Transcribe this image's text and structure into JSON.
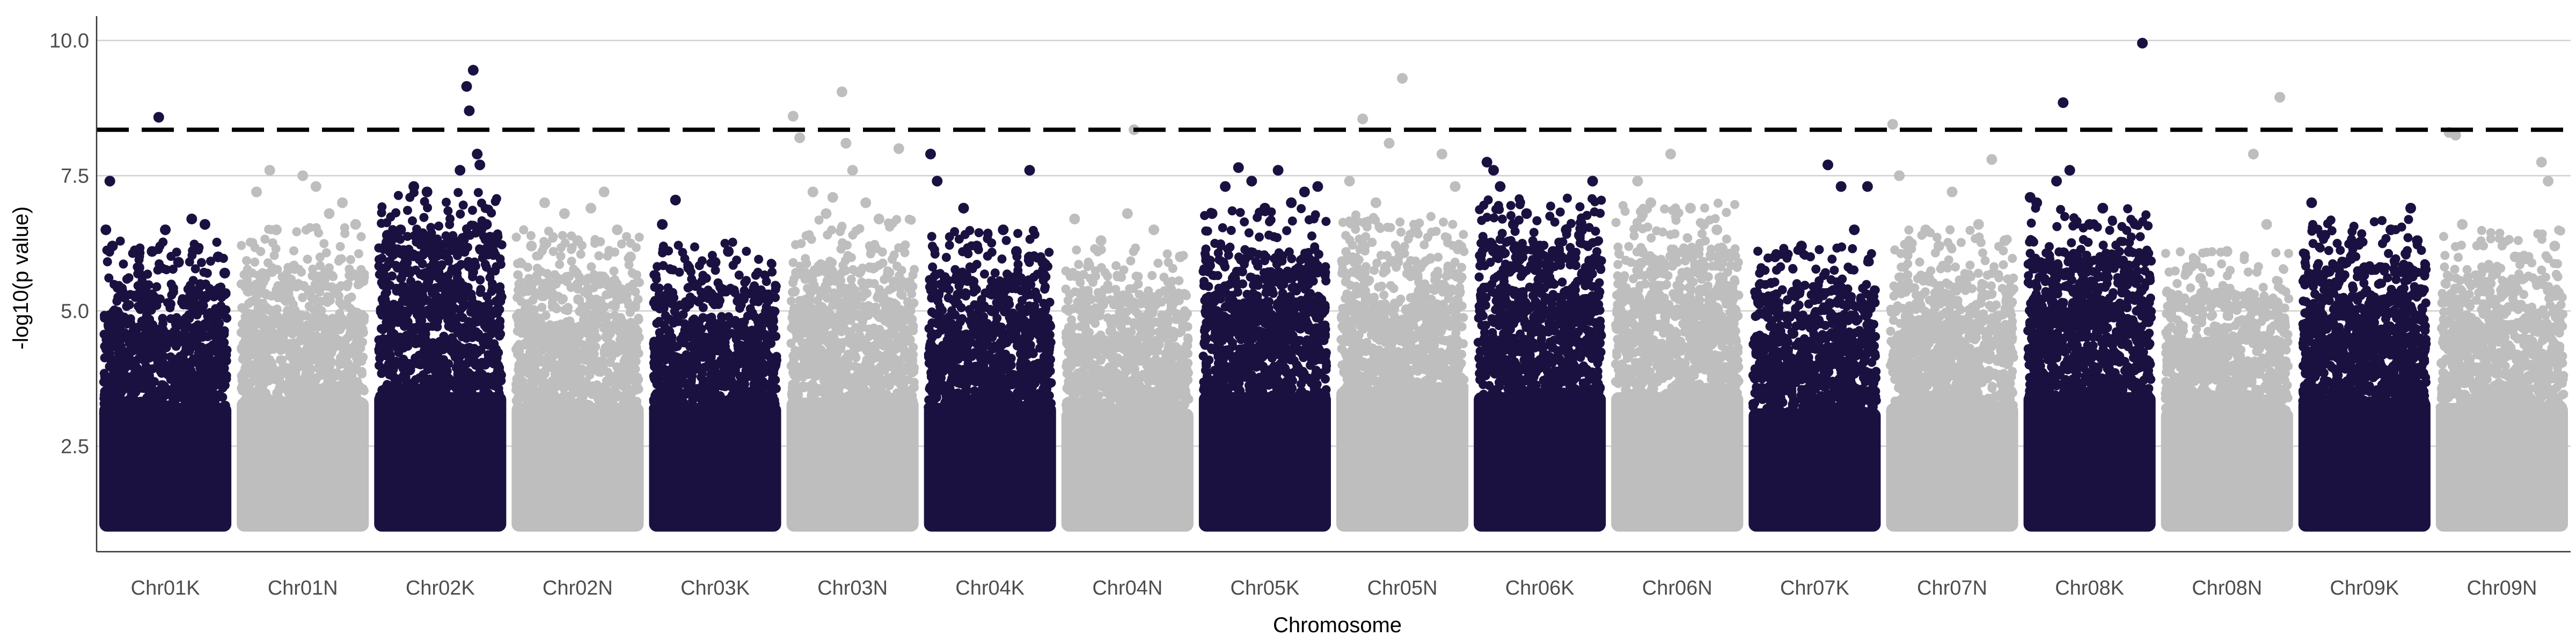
{
  "chart_data": {
    "type": "scatter",
    "subtype": "manhattan",
    "title": "",
    "xlabel": "Chromosome",
    "ylabel": "-log10(p value)",
    "ylim": [
      0.55,
      10.45
    ],
    "yticks": [
      2.5,
      5.0,
      7.5,
      10.0
    ],
    "grid": "horizontal major gridlines only",
    "legend": "none",
    "threshold": {
      "value": 8.35,
      "style": "dashed",
      "color": "#000000"
    },
    "colors": {
      "odd_chromosome": "#1b1141",
      "even_chromosome": "#bebebe"
    },
    "base_min_y": 1.0,
    "categories": [
      "Chr01K",
      "Chr01N",
      "Chr02K",
      "Chr02N",
      "Chr03K",
      "Chr03N",
      "Chr04K",
      "Chr04N",
      "Chr05K",
      "Chr05N",
      "Chr06K",
      "Chr06N",
      "Chr07K",
      "Chr07N",
      "Chr08K",
      "Chr08N",
      "Chr09K",
      "Chr09N"
    ],
    "series": [
      {
        "chromosome": "Chr01K",
        "color": "#1b1141",
        "dense_top": 3.3,
        "upper_band": 4.6,
        "notable_points": [
          [
            0.05,
            6.5
          ],
          [
            0.08,
            7.4
          ],
          [
            0.1,
            6.2
          ],
          [
            0.3,
            5.8
          ],
          [
            0.4,
            6.1
          ],
          [
            0.45,
            8.58
          ],
          [
            0.5,
            6.5
          ],
          [
            0.6,
            5.9
          ],
          [
            0.7,
            6.7
          ],
          [
            0.8,
            6.6
          ],
          [
            0.9,
            6.0
          ],
          [
            0.95,
            5.7
          ]
        ]
      },
      {
        "chromosome": "Chr01N",
        "color": "#bebebe",
        "dense_top": 3.4,
        "upper_band": 4.9,
        "notable_points": [
          [
            0.15,
            7.2
          ],
          [
            0.25,
            7.6
          ],
          [
            0.3,
            6.5
          ],
          [
            0.5,
            7.5
          ],
          [
            0.6,
            7.3
          ],
          [
            0.7,
            6.8
          ],
          [
            0.8,
            7.0
          ],
          [
            0.9,
            6.6
          ]
        ]
      },
      {
        "chromosome": "Chr02K",
        "color": "#1b1141",
        "dense_top": 3.5,
        "upper_band": 5.5,
        "notable_points": [
          [
            0.1,
            6.4
          ],
          [
            0.2,
            6.5
          ],
          [
            0.3,
            7.3
          ],
          [
            0.4,
            7.2
          ],
          [
            0.5,
            6.2
          ],
          [
            0.65,
            7.6
          ],
          [
            0.7,
            9.15
          ],
          [
            0.75,
            9.45
          ],
          [
            0.72,
            8.7
          ],
          [
            0.78,
            7.9
          ],
          [
            0.8,
            7.7
          ],
          [
            0.85,
            6.6
          ],
          [
            0.9,
            6.1
          ]
        ]
      },
      {
        "chromosome": "Chr02N",
        "color": "#bebebe",
        "dense_top": 3.3,
        "upper_band": 4.8,
        "notable_points": [
          [
            0.15,
            6.2
          ],
          [
            0.25,
            7.0
          ],
          [
            0.4,
            6.8
          ],
          [
            0.5,
            6.3
          ],
          [
            0.6,
            6.9
          ],
          [
            0.7,
            7.2
          ],
          [
            0.8,
            6.5
          ],
          [
            0.9,
            6.0
          ]
        ]
      },
      {
        "chromosome": "Chr03K",
        "color": "#1b1141",
        "dense_top": 3.3,
        "upper_band": 4.6,
        "notable_points": [
          [
            0.1,
            6.6
          ],
          [
            0.2,
            7.05
          ],
          [
            0.3,
            5.8
          ],
          [
            0.5,
            5.9
          ],
          [
            0.6,
            6.1
          ],
          [
            0.8,
            5.4
          ],
          [
            0.9,
            5.2
          ]
        ]
      },
      {
        "chromosome": "Chr03N",
        "color": "#bebebe",
        "dense_top": 3.4,
        "upper_band": 5.0,
        "notable_points": [
          [
            0.05,
            8.6
          ],
          [
            0.1,
            8.2
          ],
          [
            0.2,
            7.2
          ],
          [
            0.3,
            6.8
          ],
          [
            0.35,
            7.1
          ],
          [
            0.42,
            9.05
          ],
          [
            0.45,
            8.1
          ],
          [
            0.5,
            7.6
          ],
          [
            0.6,
            7.0
          ],
          [
            0.7,
            6.7
          ],
          [
            0.85,
            8.0
          ]
        ]
      },
      {
        "chromosome": "Chr04K",
        "color": "#1b1141",
        "dense_top": 3.3,
        "upper_band": 4.8,
        "notable_points": [
          [
            0.05,
            7.9
          ],
          [
            0.1,
            7.4
          ],
          [
            0.3,
            6.9
          ],
          [
            0.4,
            6.2
          ],
          [
            0.6,
            6.5
          ],
          [
            0.7,
            6.1
          ],
          [
            0.8,
            7.6
          ],
          [
            0.9,
            5.9
          ]
        ]
      },
      {
        "chromosome": "Chr04N",
        "color": "#bebebe",
        "dense_top": 3.2,
        "upper_band": 4.5,
        "notable_points": [
          [
            0.1,
            6.7
          ],
          [
            0.3,
            6.3
          ],
          [
            0.5,
            6.8
          ],
          [
            0.55,
            8.35
          ],
          [
            0.7,
            6.5
          ],
          [
            0.9,
            6.0
          ]
        ]
      },
      {
        "chromosome": "Chr05K",
        "color": "#1b1141",
        "dense_top": 3.5,
        "upper_band": 5.2,
        "notable_points": [
          [
            0.1,
            6.8
          ],
          [
            0.2,
            7.3
          ],
          [
            0.3,
            7.65
          ],
          [
            0.4,
            7.4
          ],
          [
            0.5,
            6.9
          ],
          [
            0.6,
            7.6
          ],
          [
            0.7,
            7.0
          ],
          [
            0.8,
            7.2
          ],
          [
            0.9,
            7.3
          ]
        ]
      },
      {
        "chromosome": "Chr05N",
        "color": "#bebebe",
        "dense_top": 3.6,
        "upper_band": 5.1,
        "notable_points": [
          [
            0.1,
            7.4
          ],
          [
            0.2,
            8.55
          ],
          [
            0.3,
            7.0
          ],
          [
            0.4,
            8.1
          ],
          [
            0.5,
            9.3
          ],
          [
            0.6,
            6.5
          ],
          [
            0.8,
            7.9
          ],
          [
            0.9,
            7.3
          ]
        ]
      },
      {
        "chromosome": "Chr06K",
        "color": "#1b1141",
        "dense_top": 3.5,
        "upper_band": 5.4,
        "notable_points": [
          [
            0.1,
            7.75
          ],
          [
            0.15,
            7.6
          ],
          [
            0.2,
            7.3
          ],
          [
            0.3,
            6.6
          ],
          [
            0.4,
            6.8
          ],
          [
            0.5,
            6.2
          ],
          [
            0.6,
            6.1
          ],
          [
            0.7,
            6.5
          ],
          [
            0.8,
            6.4
          ],
          [
            0.9,
            7.4
          ]
        ]
      },
      {
        "chromosome": "Chr06N",
        "color": "#bebebe",
        "dense_top": 3.5,
        "upper_band": 5.3,
        "notable_points": [
          [
            0.2,
            7.4
          ],
          [
            0.3,
            7.0
          ],
          [
            0.45,
            7.9
          ],
          [
            0.6,
            6.9
          ],
          [
            0.7,
            6.6
          ],
          [
            0.8,
            6.5
          ],
          [
            0.9,
            6.0
          ]
        ]
      },
      {
        "chromosome": "Chr07K",
        "color": "#1b1141",
        "dense_top": 3.2,
        "upper_band": 4.5,
        "notable_points": [
          [
            0.2,
            6.0
          ],
          [
            0.4,
            6.2
          ],
          [
            0.6,
            7.7
          ],
          [
            0.7,
            7.3
          ],
          [
            0.8,
            6.5
          ],
          [
            0.9,
            7.3
          ]
        ]
      },
      {
        "chromosome": "Chr07N",
        "color": "#bebebe",
        "dense_top": 3.3,
        "upper_band": 4.8,
        "notable_points": [
          [
            0.05,
            8.45
          ],
          [
            0.1,
            7.5
          ],
          [
            0.3,
            6.5
          ],
          [
            0.4,
            6.2
          ],
          [
            0.5,
            7.2
          ],
          [
            0.7,
            6.6
          ],
          [
            0.8,
            7.8
          ],
          [
            0.9,
            6.3
          ]
        ]
      },
      {
        "chromosome": "Chr08K",
        "color": "#1b1141",
        "dense_top": 3.5,
        "upper_band": 5.2,
        "notable_points": [
          [
            0.05,
            7.1
          ],
          [
            0.1,
            7.0
          ],
          [
            0.25,
            7.4
          ],
          [
            0.3,
            8.85
          ],
          [
            0.35,
            7.6
          ],
          [
            0.5,
            6.6
          ],
          [
            0.6,
            6.9
          ],
          [
            0.9,
            9.95
          ],
          [
            0.8,
            6.1
          ]
        ]
      },
      {
        "chromosome": "Chr08N",
        "color": "#bebebe",
        "dense_top": 3.2,
        "upper_band": 4.5,
        "notable_points": [
          [
            0.2,
            5.8
          ],
          [
            0.3,
            5.6
          ],
          [
            0.5,
            6.1
          ],
          [
            0.7,
            7.9
          ],
          [
            0.8,
            6.6
          ],
          [
            0.9,
            8.95
          ]
        ]
      },
      {
        "chromosome": "Chr09K",
        "color": "#1b1141",
        "dense_top": 3.4,
        "upper_band": 5.0,
        "notable_points": [
          [
            0.1,
            7.0
          ],
          [
            0.2,
            6.4
          ],
          [
            0.4,
            6.0
          ],
          [
            0.5,
            5.8
          ],
          [
            0.7,
            6.5
          ],
          [
            0.85,
            6.9
          ],
          [
            0.9,
            6.3
          ]
        ]
      },
      {
        "chromosome": "Chr09N",
        "color": "#bebebe",
        "dense_top": 3.3,
        "upper_band": 4.8,
        "notable_points": [
          [
            0.1,
            8.3
          ],
          [
            0.15,
            8.25
          ],
          [
            0.2,
            6.6
          ],
          [
            0.4,
            5.8
          ],
          [
            0.6,
            6.0
          ],
          [
            0.8,
            7.75
          ],
          [
            0.85,
            7.4
          ],
          [
            0.9,
            6.2
          ]
        ]
      }
    ]
  }
}
